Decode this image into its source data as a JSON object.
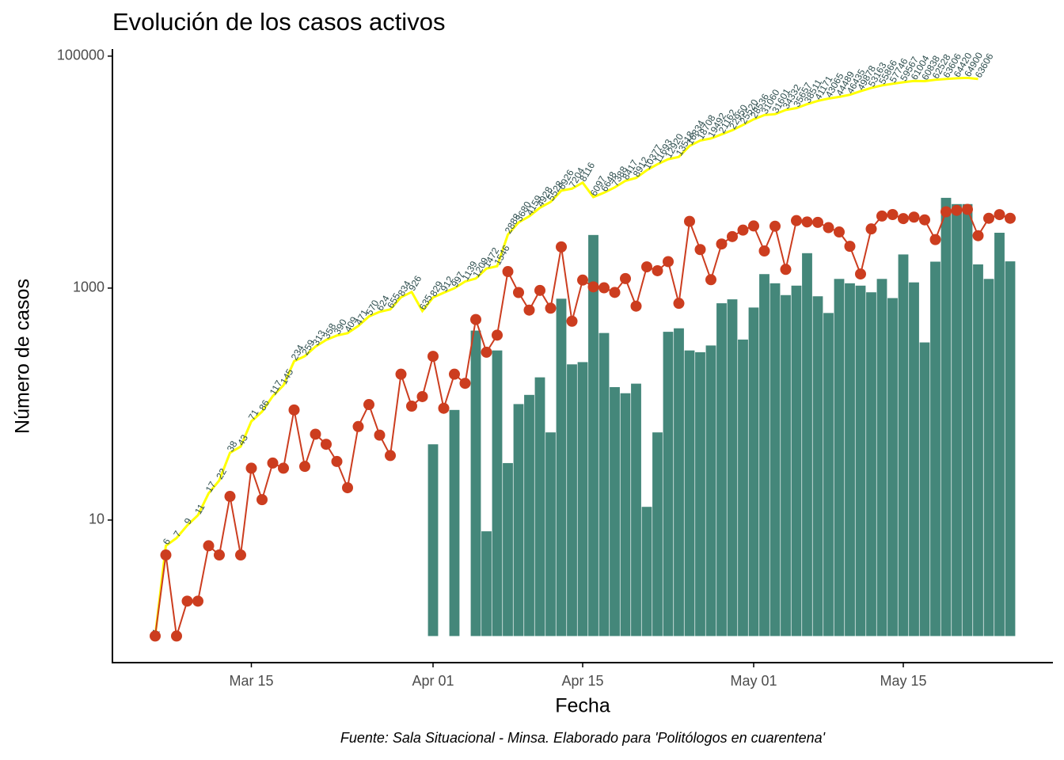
{
  "chart_data": {
    "type": "combo",
    "title": "Evolución de los casos activos",
    "xlabel": "Fecha",
    "ylabel": "Número de casos",
    "caption": "Fuente: Sala Situacional - Minsa. Elaborado para 'Politólogos en cuarentena'",
    "log_y": true,
    "ylim": [
      0.59,
      115000
    ],
    "yticks": [
      10,
      1000,
      100000
    ],
    "xlim": [
      "03-02",
      "05-29"
    ],
    "xticks": [
      {
        "value": "03-15",
        "label": "Mar 15"
      },
      {
        "value": "04-01",
        "label": "Apr 01"
      },
      {
        "value": "04-15",
        "label": "Apr 15"
      },
      {
        "value": "05-01",
        "label": "May 01"
      },
      {
        "value": "05-15",
        "label": "May 15"
      }
    ],
    "x": [
      "03-06",
      "03-07",
      "03-08",
      "03-09",
      "03-10",
      "03-11",
      "03-12",
      "03-13",
      "03-14",
      "03-15",
      "03-16",
      "03-17",
      "03-18",
      "03-19",
      "03-20",
      "03-21",
      "03-22",
      "03-23",
      "03-24",
      "03-25",
      "03-26",
      "03-27",
      "03-28",
      "03-29",
      "03-30",
      "03-31",
      "04-01",
      "04-02",
      "04-03",
      "04-04",
      "04-05",
      "04-06",
      "04-07",
      "04-08",
      "04-09",
      "04-10",
      "04-11",
      "04-12",
      "04-13",
      "04-14",
      "04-15",
      "04-16",
      "04-17",
      "04-18",
      "04-19",
      "04-20",
      "04-21",
      "04-22",
      "04-23",
      "04-24",
      "04-25",
      "04-26",
      "04-27",
      "04-28",
      "04-29",
      "04-30",
      "05-01",
      "05-02",
      "05-03",
      "05-04",
      "05-05",
      "05-06",
      "05-07",
      "05-08",
      "05-09",
      "05-10",
      "05-11",
      "05-12",
      "05-13",
      "05-14",
      "05-15",
      "05-16",
      "05-17",
      "05-18",
      "05-19",
      "05-20",
      "05-21",
      "05-22",
      "05-23",
      "05-24",
      "05-25"
    ],
    "series": [
      {
        "kind": "labeled-line",
        "color": "#ffff00",
        "label_color": "#2f4f4f",
        "values": [
          1,
          6,
          7,
          9,
          11,
          17,
          22,
          38,
          43,
          71,
          86,
          117,
          145,
          234,
          259,
          313,
          358,
          390,
          409,
          471,
          570,
          624,
          655,
          834,
          926,
          635,
          829,
          912,
          997,
          1139,
          1209,
          1472,
          1546,
          2888,
          3680,
          4159,
          4928,
          5528,
          6926,
          7204,
          8116,
          6097,
          6648,
          7388,
          8417,
          8912,
          10377,
          11693,
          12920,
          13518,
          16834,
          18708,
          19492,
          21162,
          22950,
          25520,
          28536,
          31060,
          31601,
          34332,
          35657,
          38511,
          41171,
          43065,
          44489,
          46435,
          49878,
          53163,
          55866,
          57746,
          59567,
          61004,
          60838,
          62528,
          63606,
          64420,
          64900,
          63606,
          null,
          null,
          null
        ]
      },
      {
        "kind": "bar",
        "color": "#44877a",
        "values": [
          null,
          null,
          null,
          null,
          null,
          null,
          null,
          null,
          null,
          null,
          null,
          null,
          null,
          null,
          null,
          null,
          null,
          null,
          null,
          null,
          null,
          null,
          null,
          null,
          null,
          null,
          45,
          null,
          89,
          null,
          430,
          8,
          290,
          31,
          100,
          120,
          170,
          57,
          810,
          220,
          230,
          2870,
          410,
          140,
          124,
          150,
          13,
          57,
          420,
          450,
          290,
          280,
          320,
          740,
          800,
          360,
          680,
          1320,
          1100,
          870,
          1050,
          2000,
          850,
          610,
          1200,
          1100,
          1050,
          920,
          1200,
          820,
          1950,
          1120,
          340,
          1690,
          6000,
          5300,
          5300,
          1600,
          1200,
          3000,
          1700
        ]
      },
      {
        "kind": "point-line",
        "color": "#cc3d1f",
        "values": [
          1,
          5,
          1,
          2,
          2,
          6,
          5,
          16,
          5,
          28,
          15,
          31,
          28,
          89,
          29,
          55,
          45,
          32,
          19,
          64,
          99,
          54,
          36,
          181,
          96,
          116,
          258,
          92,
          181,
          151,
          536,
          280,
          393,
          1388,
          916,
          646,
          955,
          671,
          2265,
          518,
          1172,
          1025,
          1006,
          918,
          1208,
          699,
          1524,
          1412,
          1691,
          739,
          3762,
          2148,
          1182,
          2400,
          2781,
          3163,
          3434,
          2090,
          3417,
          1450,
          3817,
          3719,
          3688,
          3321,
          3045,
          2292,
          1323,
          3237,
          4182,
          4307,
          3975,
          4093,
          3877,
          2620,
          4550,
          4681,
          4769,
          2830,
          4000,
          4300,
          4000
        ]
      }
    ]
  }
}
